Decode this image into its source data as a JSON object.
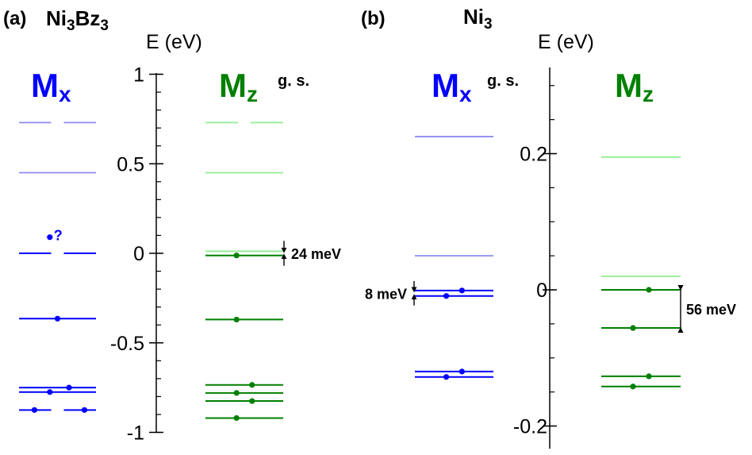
{
  "chart_data": [
    {
      "type": "energy-level-diagram",
      "panel_label": "(a)",
      "title": {
        "main": "Ni",
        "sub1": "3",
        "mid": "Bz",
        "sub2": "3"
      },
      "axis_label": "E (eV)",
      "ylim": [
        -1.05,
        1.05
      ],
      "ticks": [
        {
          "value": 1,
          "label": "1"
        },
        {
          "value": 0.5,
          "label": "0.5"
        },
        {
          "value": 0,
          "label": "0"
        },
        {
          "value": -0.5,
          "label": "-0.5"
        },
        {
          "value": -1,
          "label": "-1"
        }
      ],
      "minor_tick_step": 0.1,
      "columns": [
        {
          "key": "Mx",
          "label_main": "M",
          "label_sub": "x",
          "color": "#0000ff",
          "light_color": "#8c8cf0",
          "levels": [
            {
              "energy": 0.73,
              "style": "light",
              "split": true
            },
            {
              "energy": 0.45,
              "style": "light"
            },
            {
              "energy": 0.0,
              "style": "dark",
              "split": true
            },
            {
              "energy": -0.365,
              "style": "dark",
              "dots": [
                0.5
              ]
            },
            {
              "energy": -0.75,
              "style": "dark",
              "dots": [
                0.65
              ]
            },
            {
              "energy": -0.775,
              "style": "dark",
              "dots": [
                0.4
              ]
            },
            {
              "energy": -0.875,
              "style": "dark",
              "split": true,
              "dots": [
                0.2,
                0.85
              ]
            }
          ],
          "annotation": {
            "energy": 0.09,
            "dot_fraction": 0.4,
            "text": "?"
          }
        },
        {
          "key": "Mz",
          "label_main": "M",
          "label_sub": "z",
          "color": "#008000",
          "light_color": "#90ee90",
          "ground_state_label": "g. s.",
          "levels": [
            {
              "energy": 0.73,
              "style": "light",
              "split": true
            },
            {
              "energy": 0.45,
              "style": "light"
            },
            {
              "energy": 0.012,
              "style": "light"
            },
            {
              "energy": -0.012,
              "style": "dark",
              "dots": [
                0.4
              ]
            },
            {
              "energy": -0.37,
              "style": "dark",
              "dots": [
                0.4
              ]
            },
            {
              "energy": -0.735,
              "style": "dark",
              "dots": [
                0.6
              ]
            },
            {
              "energy": -0.78,
              "style": "dark",
              "dots": [
                0.4
              ]
            },
            {
              "energy": -0.825,
              "style": "dark",
              "dots": [
                0.6
              ]
            },
            {
              "energy": -0.92,
              "style": "dark",
              "dots": [
                0.4
              ]
            }
          ],
          "gap": {
            "from": 0.012,
            "to": -0.012,
            "side": "right",
            "label": "24 meV"
          }
        }
      ]
    },
    {
      "type": "energy-level-diagram",
      "panel_label": "(b)",
      "title": {
        "main": "Ni",
        "sub1": "3"
      },
      "axis_label": "E (eV)",
      "ylim": [
        -0.225,
        0.33
      ],
      "ticks": [
        {
          "value": 0.2,
          "label": "0.2"
        },
        {
          "value": 0,
          "label": "0"
        },
        {
          "value": -0.2,
          "label": "-0.2"
        }
      ],
      "minor_tick_step": 0.05,
      "columns": [
        {
          "key": "Mx",
          "label_main": "M",
          "label_sub": "x",
          "color": "#0000ff",
          "light_color": "#8c8cf0",
          "ground_state_label": "g. s.",
          "levels": [
            {
              "energy": 0.225,
              "style": "light"
            },
            {
              "energy": 0.05,
              "style": "light"
            },
            {
              "energy": -0.001,
              "style": "dark",
              "dots": [
                0.6
              ]
            },
            {
              "energy": -0.009,
              "style": "dark",
              "dots": [
                0.4
              ]
            },
            {
              "energy": -0.12,
              "style": "dark",
              "dots": [
                0.6
              ]
            },
            {
              "energy": -0.128,
              "style": "dark",
              "dots": [
                0.4
              ]
            }
          ],
          "gap": {
            "from": -0.001,
            "to": -0.009,
            "side": "left",
            "label": "8 meV"
          }
        },
        {
          "key": "Mz",
          "label_main": "M",
          "label_sub": "z",
          "color": "#008000",
          "light_color": "#90ee90",
          "levels": [
            {
              "energy": 0.195,
              "style": "light"
            },
            {
              "energy": 0.02,
              "style": "light"
            },
            {
              "energy": 0.0,
              "style": "dark",
              "dots": [
                0.6
              ]
            },
            {
              "energy": -0.056,
              "style": "dark",
              "dots": [
                0.4
              ]
            },
            {
              "energy": -0.127,
              "style": "dark",
              "dots": [
                0.6
              ]
            },
            {
              "energy": -0.142,
              "style": "dark",
              "dots": [
                0.4
              ]
            }
          ],
          "gap": {
            "from": 0.0,
            "to": -0.056,
            "side": "right",
            "label": "56 meV"
          }
        }
      ]
    }
  ]
}
